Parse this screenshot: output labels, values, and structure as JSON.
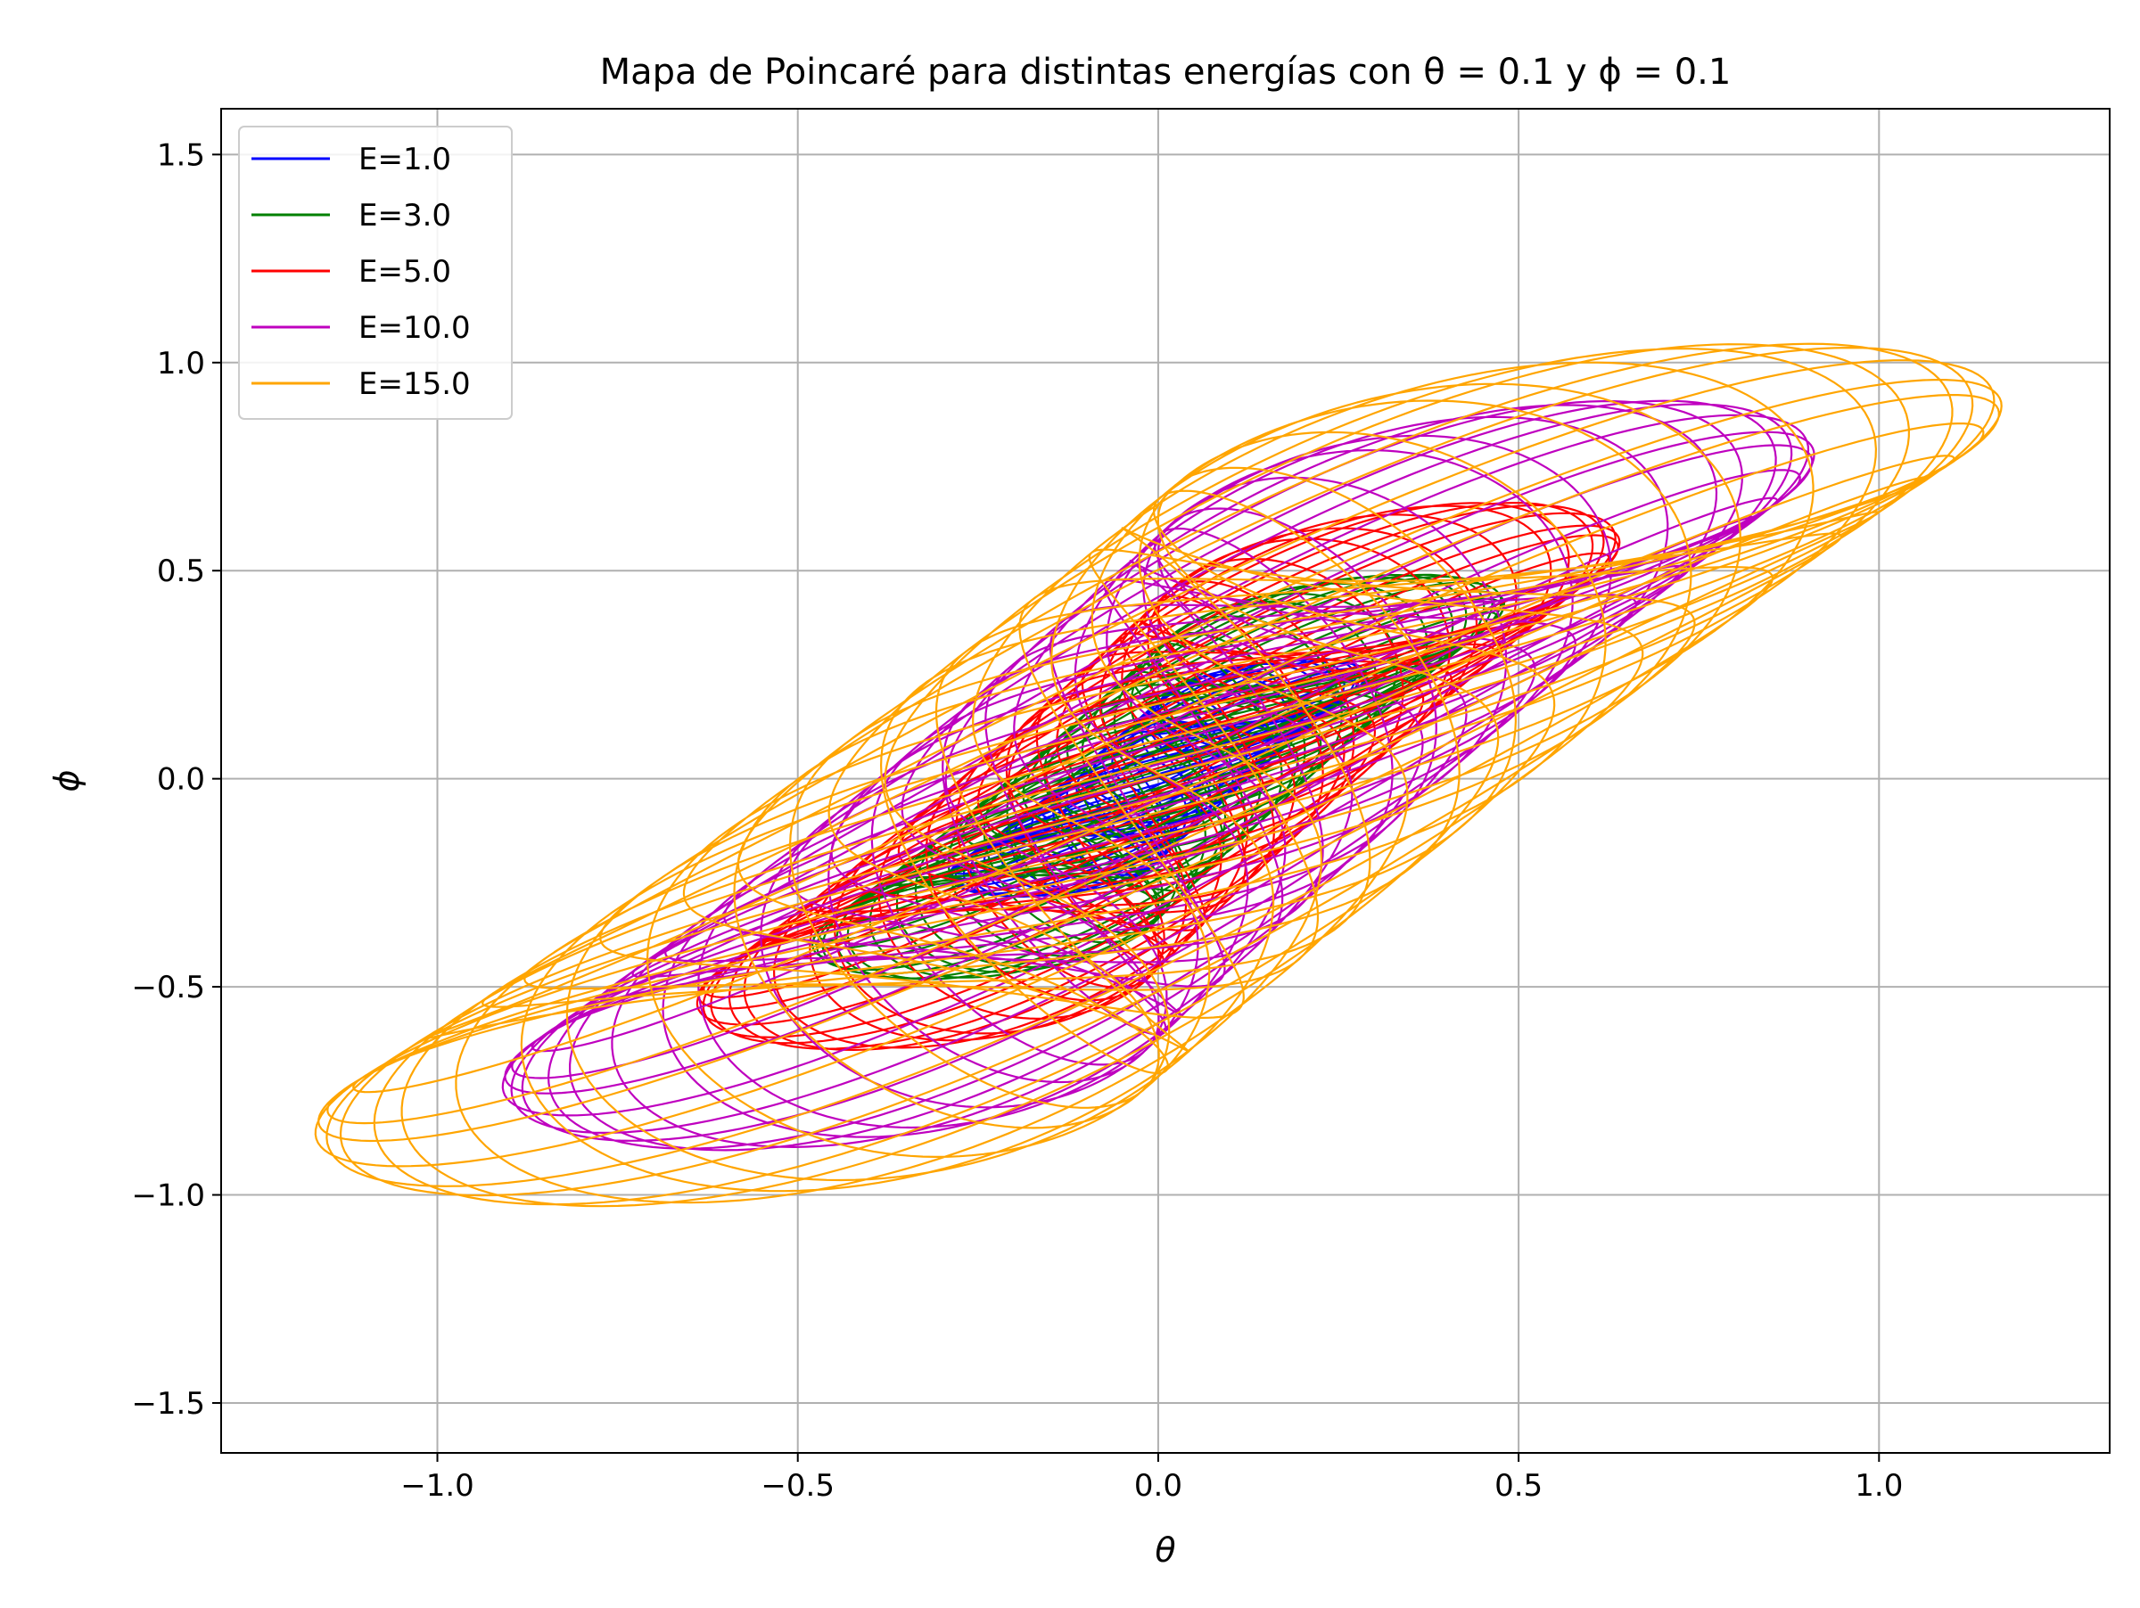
{
  "chart_data": {
    "type": "line",
    "title": "Mapa de Poincaré para distintas energías con θ = 0.1 y ϕ = 0.1",
    "xlabel": "θ",
    "ylabel": "ϕ",
    "xlim": [
      -1.3,
      1.32
    ],
    "ylim": [
      -1.62,
      1.61
    ],
    "xticks": [
      -1.0,
      -0.5,
      0.0,
      0.5,
      1.0
    ],
    "xtick_labels": [
      "−1.0",
      "−0.5",
      "0.0",
      "0.5",
      "1.0"
    ],
    "yticks": [
      -1.5,
      -1.0,
      -0.5,
      0.0,
      0.5,
      1.0,
      1.5
    ],
    "ytick_labels": [
      "−1.5",
      "−1.0",
      "−0.5",
      "0.0",
      "0.5",
      "1.0",
      "1.5"
    ],
    "grid": true,
    "legend": "upper-left",
    "series": [
      {
        "name": "E=1.0",
        "color": "#0000ff",
        "ax": 0.29,
        "ay": 0.4,
        "xlim_max": 0.31,
        "ylim_max": 0.41
      },
      {
        "name": "E=3.0",
        "color": "#008000",
        "ax": 0.48,
        "ay": 0.68,
        "xlim_max": 0.52,
        "ylim_max": 0.7
      },
      {
        "name": "E=5.0",
        "color": "#ff0000",
        "ax": 0.64,
        "ay": 0.92,
        "xlim_max": 0.67,
        "ylim_max": 0.93
      },
      {
        "name": "E=10.0",
        "color": "#bf00bf",
        "ax": 0.91,
        "ay": 1.26,
        "xlim_max": 0.94,
        "ylim_max": 1.28
      },
      {
        "name": "E=15.0",
        "color": "#ffa500",
        "ax": 1.17,
        "ay": 1.45,
        "xlim_max": 1.2,
        "ylim_max": 1.47
      }
    ]
  }
}
